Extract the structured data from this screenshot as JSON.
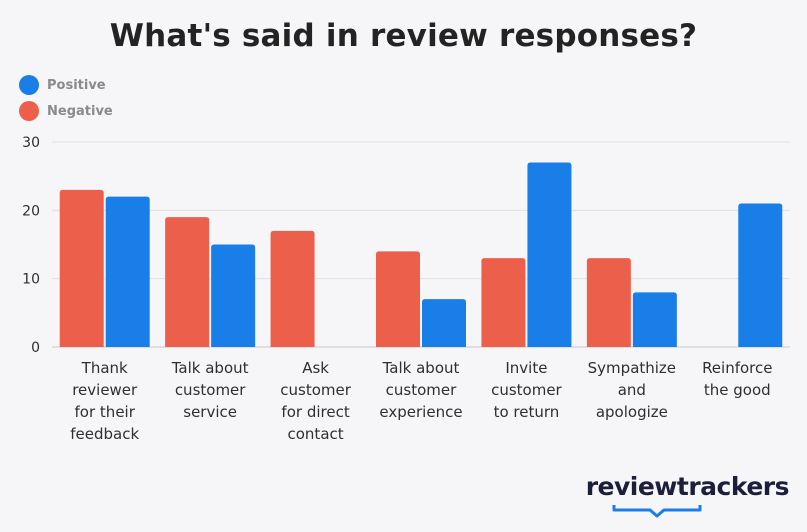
{
  "title": "What's said in review responses?",
  "brand": "reviewtrackers",
  "colors": {
    "positive": "#1a7ee8",
    "negative": "#ec5f4a",
    "grid": "#e0e0e4",
    "text": "#2f2f2f"
  },
  "chart_data": {
    "type": "bar",
    "title": "What's said in review responses?",
    "xlabel": "",
    "ylabel": "",
    "ylim": [
      0,
      30
    ],
    "yticks": [
      0,
      10,
      20,
      30
    ],
    "grid": true,
    "legend_position": "top-left",
    "categories": [
      "Thank reviewer for their feedback",
      "Talk about customer service",
      "Ask customer for direct contact",
      "Talk about customer experience",
      "Invite customer to return",
      "Sympathize and apologize",
      "Reinforce the good"
    ],
    "category_lines": [
      [
        "Thank",
        "reviewer",
        "for their",
        "feedback"
      ],
      [
        "Talk about",
        "customer",
        "service"
      ],
      [
        "Ask",
        "customer",
        "for direct",
        "contact"
      ],
      [
        "Talk about",
        "customer",
        "experience"
      ],
      [
        "Invite",
        "customer",
        "to return"
      ],
      [
        "Sympathize",
        "and",
        "apologize"
      ],
      [
        "Reinforce",
        "the good"
      ]
    ],
    "series": [
      {
        "name": "Negative",
        "color": "#ec5f4a",
        "values": [
          23,
          19,
          17,
          14,
          13,
          13,
          0
        ]
      },
      {
        "name": "Positive",
        "color": "#1a7ee8",
        "values": [
          22,
          15,
          0,
          7,
          27,
          8,
          21
        ]
      }
    ],
    "legend": [
      {
        "name": "Positive",
        "color": "#1a7ee8"
      },
      {
        "name": "Negative",
        "color": "#ec5f4a"
      }
    ]
  }
}
